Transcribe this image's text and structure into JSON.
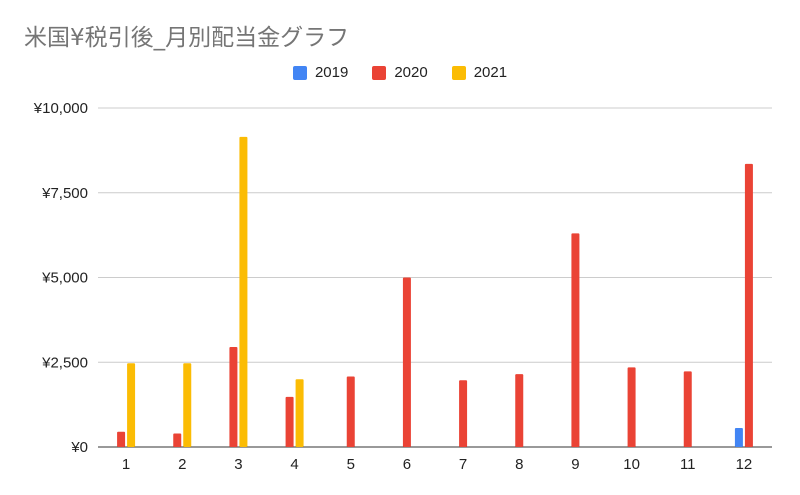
{
  "chart_data": {
    "type": "bar",
    "title": "米国¥税引後_月別配当金グラフ",
    "xlabel": "",
    "ylabel": "",
    "categories": [
      "1",
      "2",
      "3",
      "4",
      "5",
      "6",
      "7",
      "8",
      "9",
      "10",
      "11",
      "12"
    ],
    "series": [
      {
        "name": "2019",
        "color": "#4285f4",
        "values": [
          0,
          0,
          0,
          0,
          0,
          0,
          0,
          0,
          0,
          0,
          0,
          560
        ]
      },
      {
        "name": "2020",
        "color": "#ea4335",
        "values": [
          450,
          400,
          2950,
          1480,
          2080,
          5000,
          1970,
          2150,
          6300,
          2350,
          2230,
          8350
        ]
      },
      {
        "name": "2021",
        "color": "#fbbc04",
        "values": [
          2470,
          2470,
          9150,
          2000,
          0,
          0,
          0,
          0,
          0,
          0,
          0,
          0
        ]
      }
    ],
    "ylim": [
      0,
      10000
    ],
    "yticks": [
      0,
      2500,
      5000,
      7500,
      10000
    ],
    "ytick_labels": [
      "¥0",
      "¥2,500",
      "¥5,000",
      "¥7,500",
      "¥10,000"
    ],
    "grid": true,
    "legend_position": "top-center"
  }
}
